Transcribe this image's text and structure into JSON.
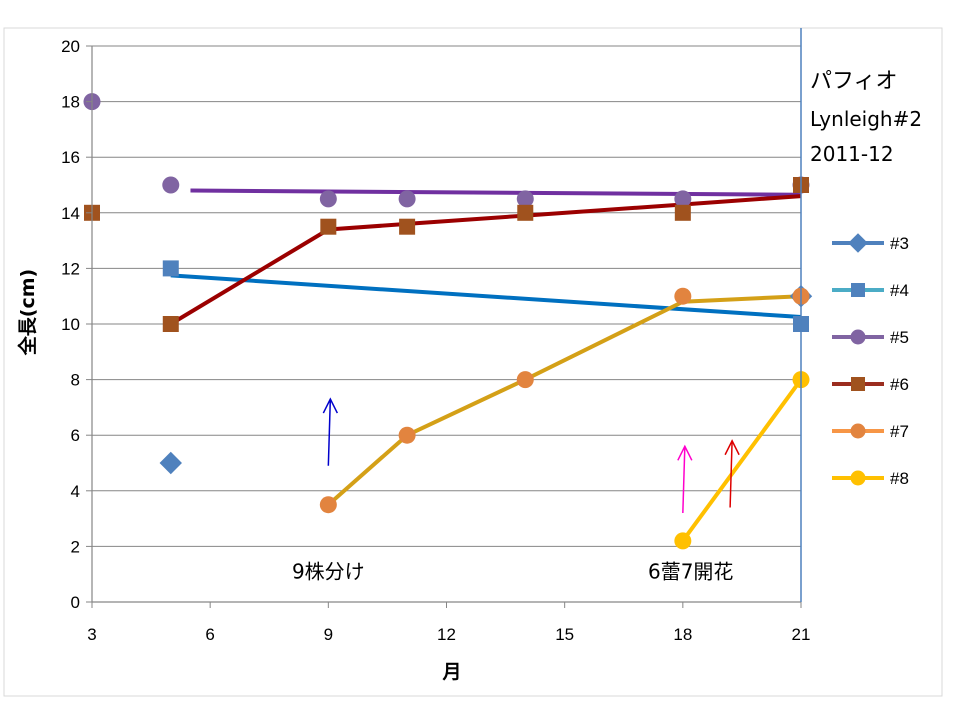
{
  "chart_data": {
    "type": "line",
    "title": "パフィオ",
    "subtitle_lines": [
      "Lynleigh#2",
      "2011-12"
    ],
    "xlabel": "月",
    "ylabel": "全長(cm)",
    "xlim": [
      3,
      21
    ],
    "ylim": [
      0,
      20
    ],
    "xticks": [
      3,
      6,
      9,
      12,
      15,
      18,
      21
    ],
    "yticks": [
      0,
      2,
      4,
      6,
      8,
      10,
      12,
      14,
      16,
      18,
      20
    ],
    "grid": "horizontal",
    "legend_position": "right",
    "series": [
      {
        "name": "#3",
        "color": "#4F81BD",
        "marker": "diamond",
        "line": false,
        "points": [
          [
            5,
            5
          ],
          [
            21,
            11
          ]
        ]
      },
      {
        "name": "#4",
        "color": "#4BACC6",
        "marker": "square",
        "line": false,
        "marker_color": "#4F81BD",
        "points": [
          [
            5,
            12
          ],
          [
            21,
            10
          ]
        ],
        "trend": {
          "color": "#0070C0",
          "from": [
            5,
            11.75
          ],
          "to": [
            21,
            10.25
          ]
        }
      },
      {
        "name": "#5",
        "color": "#8064A2",
        "marker": "circle",
        "line": false,
        "points": [
          [
            3,
            18
          ],
          [
            5,
            15
          ],
          [
            9,
            14.5
          ],
          [
            11,
            14.5
          ],
          [
            14,
            14.5
          ],
          [
            18,
            14.5
          ],
          [
            21,
            15
          ]
        ],
        "trend": {
          "color": "#7030A0",
          "from": [
            5.5,
            14.8
          ],
          "to": [
            21,
            14.65
          ]
        }
      },
      {
        "name": "#6",
        "color": "#9B2D1F",
        "marker": "square",
        "line": true,
        "marker_color": "#A0521E",
        "points": [
          [
            3,
            14
          ],
          [
            5,
            10
          ],
          [
            9,
            13.5
          ],
          [
            11,
            13.5
          ],
          [
            14,
            14
          ],
          [
            18,
            14
          ],
          [
            21,
            15
          ]
        ],
        "fit": {
          "color": "#9B0000",
          "points": [
            [
              5,
              10
            ],
            [
              9,
              13.4
            ],
            [
              11,
              13.6
            ],
            [
              14,
              13.9
            ],
            [
              18,
              14.3
            ],
            [
              21,
              14.6
            ]
          ]
        }
      },
      {
        "name": "#7",
        "color": "#F79646",
        "marker": "circle",
        "line": false,
        "marker_color": "#E2843F",
        "points": [
          [
            9,
            3.5
          ],
          [
            11,
            6
          ],
          [
            14,
            8
          ],
          [
            18,
            11
          ],
          [
            21,
            11
          ]
        ],
        "fit": {
          "color": "#D4A017",
          "points": [
            [
              9,
              3.5
            ],
            [
              11,
              6
            ],
            [
              14,
              8
            ],
            [
              18,
              10.8
            ],
            [
              21,
              11
            ]
          ]
        }
      },
      {
        "name": "#8",
        "color": "#FFC000",
        "marker": "circle",
        "line": true,
        "points": [
          [
            18,
            2.2
          ],
          [
            21,
            8
          ]
        ]
      }
    ],
    "annotations": [
      {
        "text": "9株分け",
        "x": 9,
        "y": 0.85,
        "anchor": "middle"
      },
      {
        "text": "6蕾7開花",
        "x": 18.2,
        "y": 0.85,
        "anchor": "middle"
      }
    ],
    "arrows": [
      {
        "color": "#0000CC",
        "x": 9,
        "y_from": 4.9,
        "y_to": 7.3
      },
      {
        "color": "#FF00CC",
        "x": 18,
        "y_from": 3.2,
        "y_to": 5.6
      },
      {
        "color": "#DD0000",
        "x": 19.2,
        "y_from": 3.4,
        "y_to": 5.8
      }
    ]
  }
}
